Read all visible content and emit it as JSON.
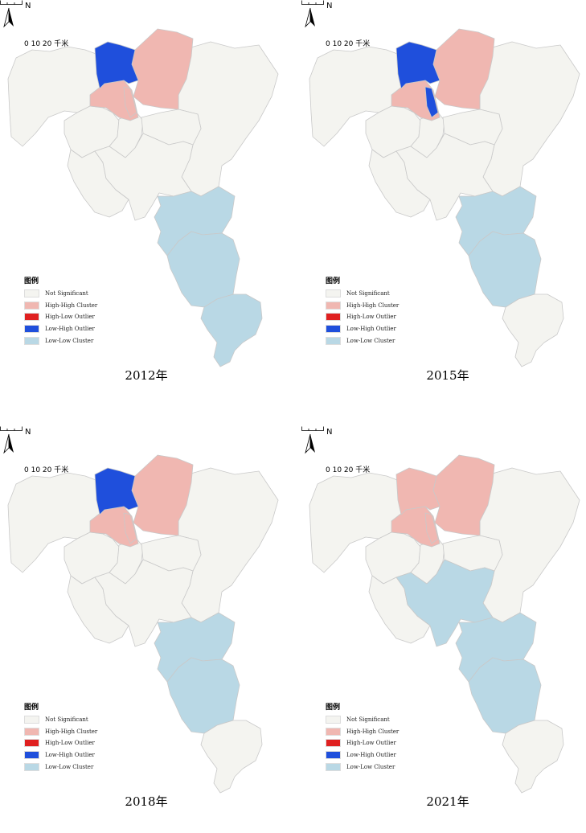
{
  "map": {
    "north_label": "N",
    "scale_label": "0  10 20 千米",
    "legend_title": "图例",
    "legend_items": [
      {
        "label": "Not Significant",
        "color": "#f4f4f0"
      },
      {
        "label": "High-High Cluster",
        "color": "#f0b7b1"
      },
      {
        "label": "High-Low Outlier",
        "color": "#e02020"
      },
      {
        "label": "Low-High Outlier",
        "color": "#1f4fdc"
      },
      {
        "label": "Low-Low Cluster",
        "color": "#b9d8e5"
      }
    ],
    "panels": [
      {
        "year": "2012年",
        "regions": {
          "nw": "ns",
          "north": "lh",
          "ne_hh": "hh",
          "west_hh": "hh",
          "strip": "hh",
          "c1": "ns",
          "c2": "ns",
          "c3": "ns",
          "c4": "ns",
          "east": "ns",
          "central": "ns",
          "s1": "ll",
          "s2": "ll",
          "s3": "ll"
        }
      },
      {
        "year": "2015年",
        "regions": {
          "nw": "ns",
          "north": "lh",
          "ne_hh": "hh",
          "west_hh": "hh",
          "strip": "lh",
          "c1": "ns",
          "c2": "ns",
          "c3": "ns",
          "c4": "ns",
          "east": "ns",
          "central": "ns",
          "s1": "ll",
          "s2": "ll",
          "s3": "ns"
        }
      },
      {
        "year": "2018年",
        "regions": {
          "nw": "ns",
          "north": "lh",
          "ne_hh": "hh",
          "west_hh": "hh",
          "strip": "hh",
          "c1": "ns",
          "c2": "ns",
          "c3": "ns",
          "c4": "ns",
          "east": "ns",
          "central": "ns",
          "s1": "ll",
          "s2": "ll",
          "s3": "ns"
        }
      },
      {
        "year": "2021年",
        "regions": {
          "nw": "ns",
          "north": "hh",
          "ne_hh": "hh",
          "west_hh": "hh",
          "strip": "hh",
          "c1": "ns",
          "c2": "ns",
          "c3": "ns",
          "c4": "ns",
          "east": "ns",
          "central": "ll",
          "s1": "ll",
          "s2": "ll",
          "s3": "ns"
        }
      }
    ]
  }
}
